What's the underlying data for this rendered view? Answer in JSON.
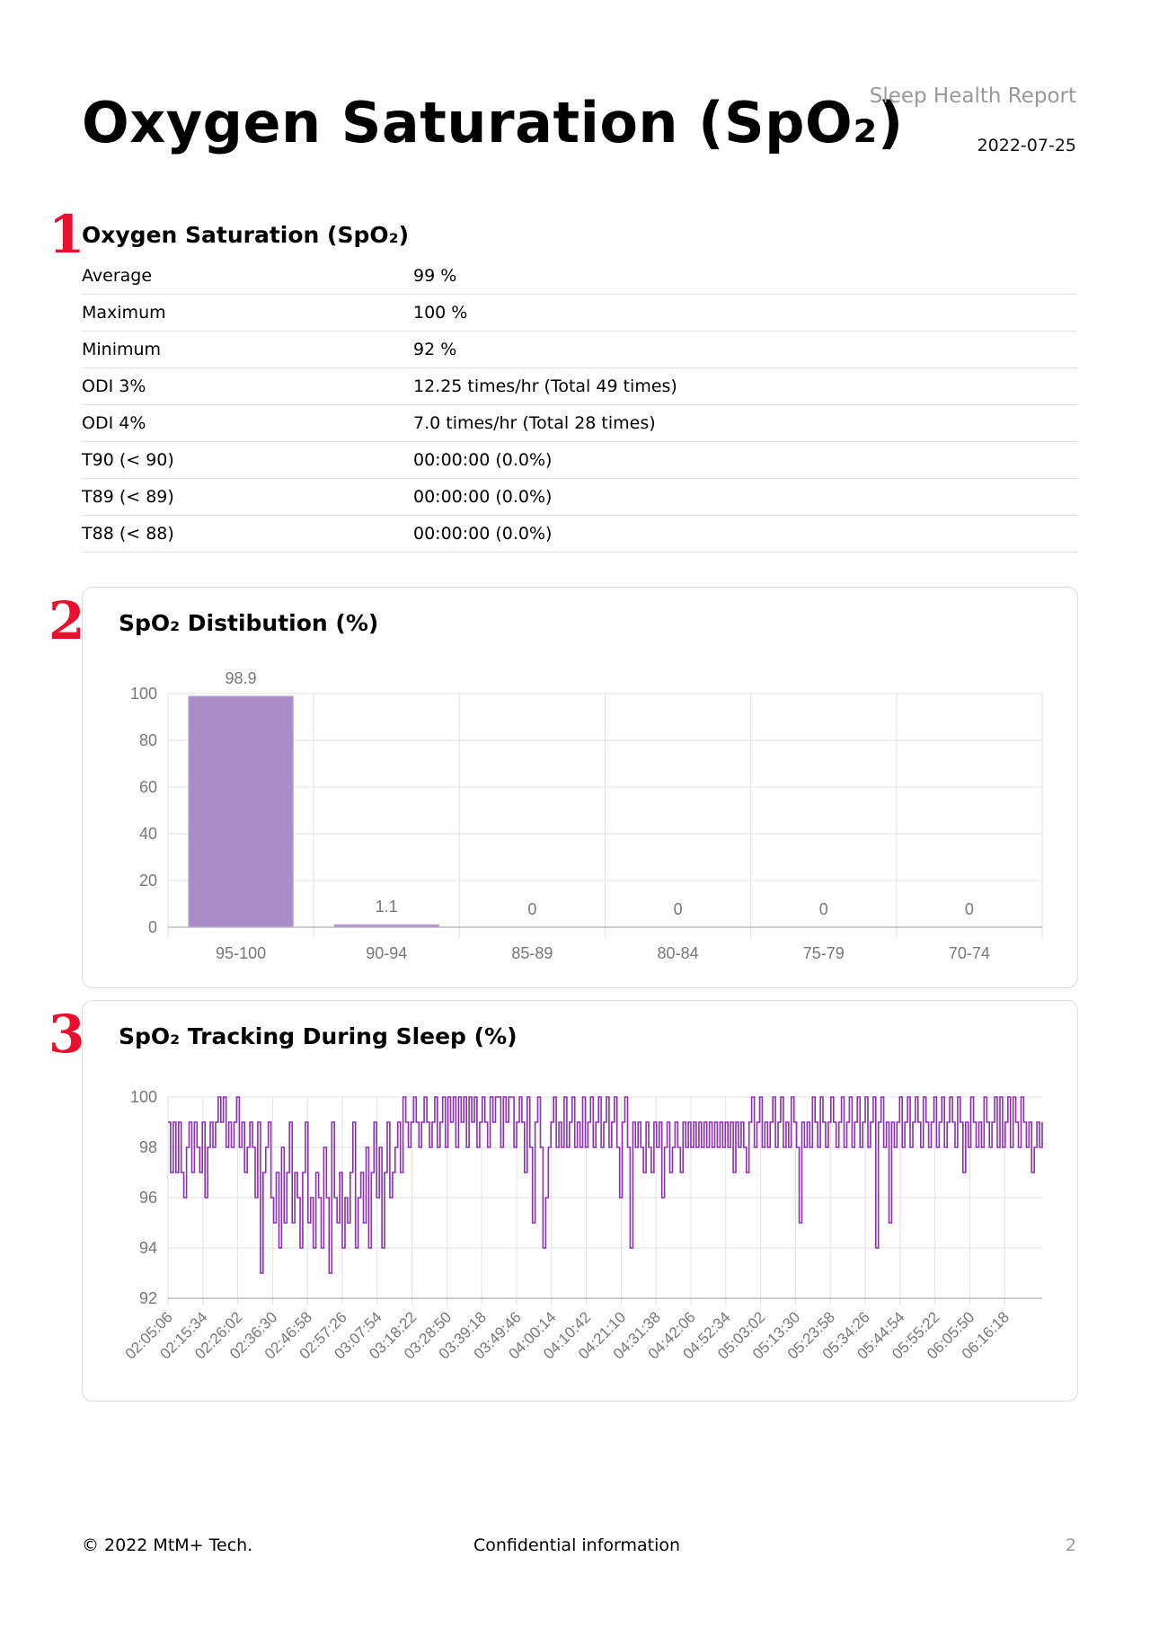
{
  "header": {
    "title": "Oxygen Saturation (SpO₂)",
    "report_name": "Sleep Health Report",
    "date": "2022-07-25"
  },
  "sections": [
    {
      "number": "1",
      "title": "Oxygen Saturation (SpO₂)"
    },
    {
      "number": "2",
      "title": "SpO₂ Distibution (%)"
    },
    {
      "number": "3",
      "title": "SpO₂ Tracking During Sleep (%)"
    }
  ],
  "stats": [
    {
      "label": "Average",
      "value": "99 %"
    },
    {
      "label": "Maximum",
      "value": "100 %"
    },
    {
      "label": "Minimum",
      "value": "92 %"
    },
    {
      "label": "ODI 3%",
      "value": "12.25 times/hr (Total 49 times)"
    },
    {
      "label": "ODI 4%",
      "value": "7.0 times/hr (Total 28 times)"
    },
    {
      "label": "T90 (< 90)",
      "value": "00:00:00 (0.0%)"
    },
    {
      "label": "T89 (< 89)",
      "value": "00:00:00 (0.0%)"
    },
    {
      "label": "T88 (< 88)",
      "value": "00:00:00 (0.0%)"
    }
  ],
  "colors": {
    "accent_red": "#e8102e",
    "bar_fill": "#a98ec6",
    "line": "#8b2fb5",
    "grid": "#e2e2e2",
    "axis_text": "#777777"
  },
  "chart_data": [
    {
      "type": "bar",
      "categories": [
        "95-100",
        "90-94",
        "85-89",
        "80-84",
        "75-79",
        "70-74"
      ],
      "values": [
        98.9,
        1.1,
        0,
        0,
        0,
        0
      ],
      "data_labels": [
        "98.9",
        "1.1",
        "0",
        "0",
        "0",
        "0"
      ],
      "yticks": [
        0,
        20,
        40,
        60,
        80,
        100
      ],
      "ylim": [
        0,
        100
      ],
      "grid": true
    },
    {
      "type": "line",
      "x_tick_labels": [
        "02:05:06",
        "02:15:34",
        "02:26:02",
        "02:36:30",
        "02:46:58",
        "02:57:26",
        "03:07:54",
        "03:18:22",
        "03:28:50",
        "03:39:18",
        "03:49:46",
        "04:00:14",
        "04:10:42",
        "04:21:10",
        "04:31:38",
        "04:42:06",
        "04:52:34",
        "05:03:02",
        "05:13:30",
        "05:23:58",
        "05:34:26",
        "05:44:54",
        "05:55:22",
        "06:05:50",
        "06:16:18"
      ],
      "yticks": [
        92,
        94,
        96,
        98,
        100
      ],
      "ylim": [
        92,
        100
      ],
      "grid": true,
      "series": [
        {
          "sample_interval_s": 26.14,
          "values": [
            99,
            97,
            99,
            97,
            99,
            97,
            96,
            98,
            99,
            97,
            99,
            98,
            97,
            99,
            96,
            98,
            99,
            98,
            99,
            100,
            99,
            100,
            98,
            99,
            98,
            99,
            100,
            98,
            99,
            97,
            98,
            99,
            98,
            96,
            99,
            93,
            97,
            98,
            99,
            96,
            95,
            97,
            94,
            98,
            95,
            97,
            99,
            95,
            97,
            96,
            94,
            97,
            99,
            95,
            96,
            94,
            97,
            96,
            94,
            98,
            96,
            93,
            99,
            96,
            95,
            97,
            94,
            96,
            95,
            97,
            99,
            94,
            96,
            97,
            95,
            98,
            94,
            97,
            99,
            96,
            98,
            94,
            97,
            99,
            96,
            97,
            98,
            99,
            97,
            100,
            99,
            98,
            99,
            100,
            99,
            98,
            99,
            100,
            99,
            98,
            99,
            100,
            98,
            99,
            100,
            98,
            100,
            99,
            100,
            98,
            100,
            99,
            100,
            98,
            100,
            99,
            100,
            98,
            99,
            100,
            99,
            98,
            100,
            99,
            100,
            100,
            98,
            100,
            99,
            100,
            100,
            98,
            99,
            100,
            99,
            97,
            100,
            98,
            95,
            99,
            100,
            98,
            94,
            96,
            98,
            99,
            100,
            98,
            99,
            98,
            100,
            98,
            99,
            100,
            98,
            99,
            98,
            100,
            98,
            99,
            100,
            98,
            99,
            100,
            98,
            99,
            100,
            98,
            99,
            100,
            98,
            96,
            99,
            100,
            98,
            94,
            99,
            98,
            99,
            98,
            97,
            99,
            98,
            97,
            99,
            98,
            99,
            96,
            98,
            99,
            97,
            98,
            99,
            98,
            97,
            99,
            98,
            99,
            98,
            99,
            98,
            99,
            98,
            99,
            98,
            99,
            98,
            99,
            98,
            99,
            98,
            99,
            98,
            99,
            97,
            99,
            98,
            99,
            98,
            97,
            99,
            100,
            98,
            99,
            100,
            98,
            99,
            98,
            99,
            100,
            98,
            99,
            100,
            98,
            99,
            98,
            100,
            99,
            98,
            95,
            99,
            98,
            99,
            98,
            100,
            99,
            98,
            100,
            99,
            98,
            99,
            100,
            99,
            98,
            99,
            100,
            98,
            99,
            100,
            98,
            99,
            100,
            98,
            99,
            100,
            98,
            99,
            100,
            94,
            99,
            100,
            98,
            99,
            95,
            99,
            98,
            99,
            100,
            98,
            99,
            100,
            98,
            99,
            100,
            99,
            98,
            100,
            99,
            98,
            99,
            100,
            98,
            99,
            100,
            98,
            99,
            100,
            99,
            98,
            100,
            99,
            97,
            99,
            98,
            100,
            99,
            98,
            99,
            98,
            100,
            99,
            98,
            99,
            100,
            98,
            100,
            98,
            99,
            100,
            98,
            100,
            99,
            98,
            100,
            99,
            98,
            99,
            97,
            98,
            99,
            98,
            99
          ]
        }
      ]
    }
  ],
  "footer": {
    "copyright": "© 2022 MtM+ Tech.",
    "confidential": "Confidential information",
    "page_number": "2"
  }
}
